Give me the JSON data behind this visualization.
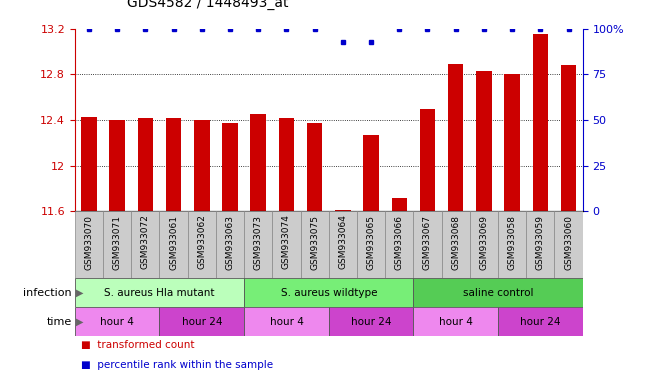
{
  "title": "GDS4582 / 1448493_at",
  "samples": [
    "GSM933070",
    "GSM933071",
    "GSM933072",
    "GSM933061",
    "GSM933062",
    "GSM933063",
    "GSM933073",
    "GSM933074",
    "GSM933075",
    "GSM933064",
    "GSM933065",
    "GSM933066",
    "GSM933067",
    "GSM933068",
    "GSM933069",
    "GSM933058",
    "GSM933059",
    "GSM933060"
  ],
  "bar_values": [
    12.43,
    12.4,
    12.42,
    12.42,
    12.4,
    12.37,
    12.45,
    12.42,
    12.37,
    11.61,
    12.27,
    11.72,
    12.5,
    12.89,
    12.83,
    12.8,
    13.15,
    12.88
  ],
  "percentile_values": [
    100,
    100,
    100,
    100,
    100,
    100,
    100,
    100,
    100,
    93,
    93,
    100,
    100,
    100,
    100,
    100,
    100,
    100
  ],
  "bar_color": "#cc0000",
  "dot_color": "#0000cc",
  "ylim_left": [
    11.6,
    13.2
  ],
  "ylim_right": [
    0,
    100
  ],
  "yticks_left": [
    11.6,
    12.0,
    12.4,
    12.8,
    13.2
  ],
  "yticks_right": [
    0,
    25,
    50,
    75,
    100
  ],
  "ytick_labels_left": [
    "11.6",
    "12",
    "12.4",
    "12.8",
    "13.2"
  ],
  "ytick_labels_right": [
    "0",
    "25",
    "50",
    "75",
    "100%"
  ],
  "gridlines": [
    12.0,
    12.4,
    12.8
  ],
  "infection_groups": [
    {
      "label": "S. aureus Hla mutant",
      "start": 0,
      "end": 6,
      "color": "#bbffbb"
    },
    {
      "label": "S. aureus wildtype",
      "start": 6,
      "end": 12,
      "color": "#77ee77"
    },
    {
      "label": "saline control",
      "start": 12,
      "end": 18,
      "color": "#55cc55"
    }
  ],
  "time_groups": [
    {
      "label": "hour 4",
      "start": 0,
      "end": 3,
      "color": "#ee88ee"
    },
    {
      "label": "hour 24",
      "start": 3,
      "end": 6,
      "color": "#cc44cc"
    },
    {
      "label": "hour 4",
      "start": 6,
      "end": 9,
      "color": "#ee88ee"
    },
    {
      "label": "hour 24",
      "start": 9,
      "end": 12,
      "color": "#cc44cc"
    },
    {
      "label": "hour 4",
      "start": 12,
      "end": 15,
      "color": "#ee88ee"
    },
    {
      "label": "hour 24",
      "start": 15,
      "end": 18,
      "color": "#cc44cc"
    }
  ],
  "infection_label": "infection",
  "time_label": "time",
  "legend_items": [
    {
      "color": "#cc0000",
      "label": "transformed count"
    },
    {
      "color": "#0000cc",
      "label": "percentile rank within the sample"
    }
  ],
  "background_color": "#ffffff",
  "tick_color_left": "#cc0000",
  "tick_color_right": "#0000cc",
  "sample_bg_color": "#cccccc",
  "bar_width": 0.55
}
